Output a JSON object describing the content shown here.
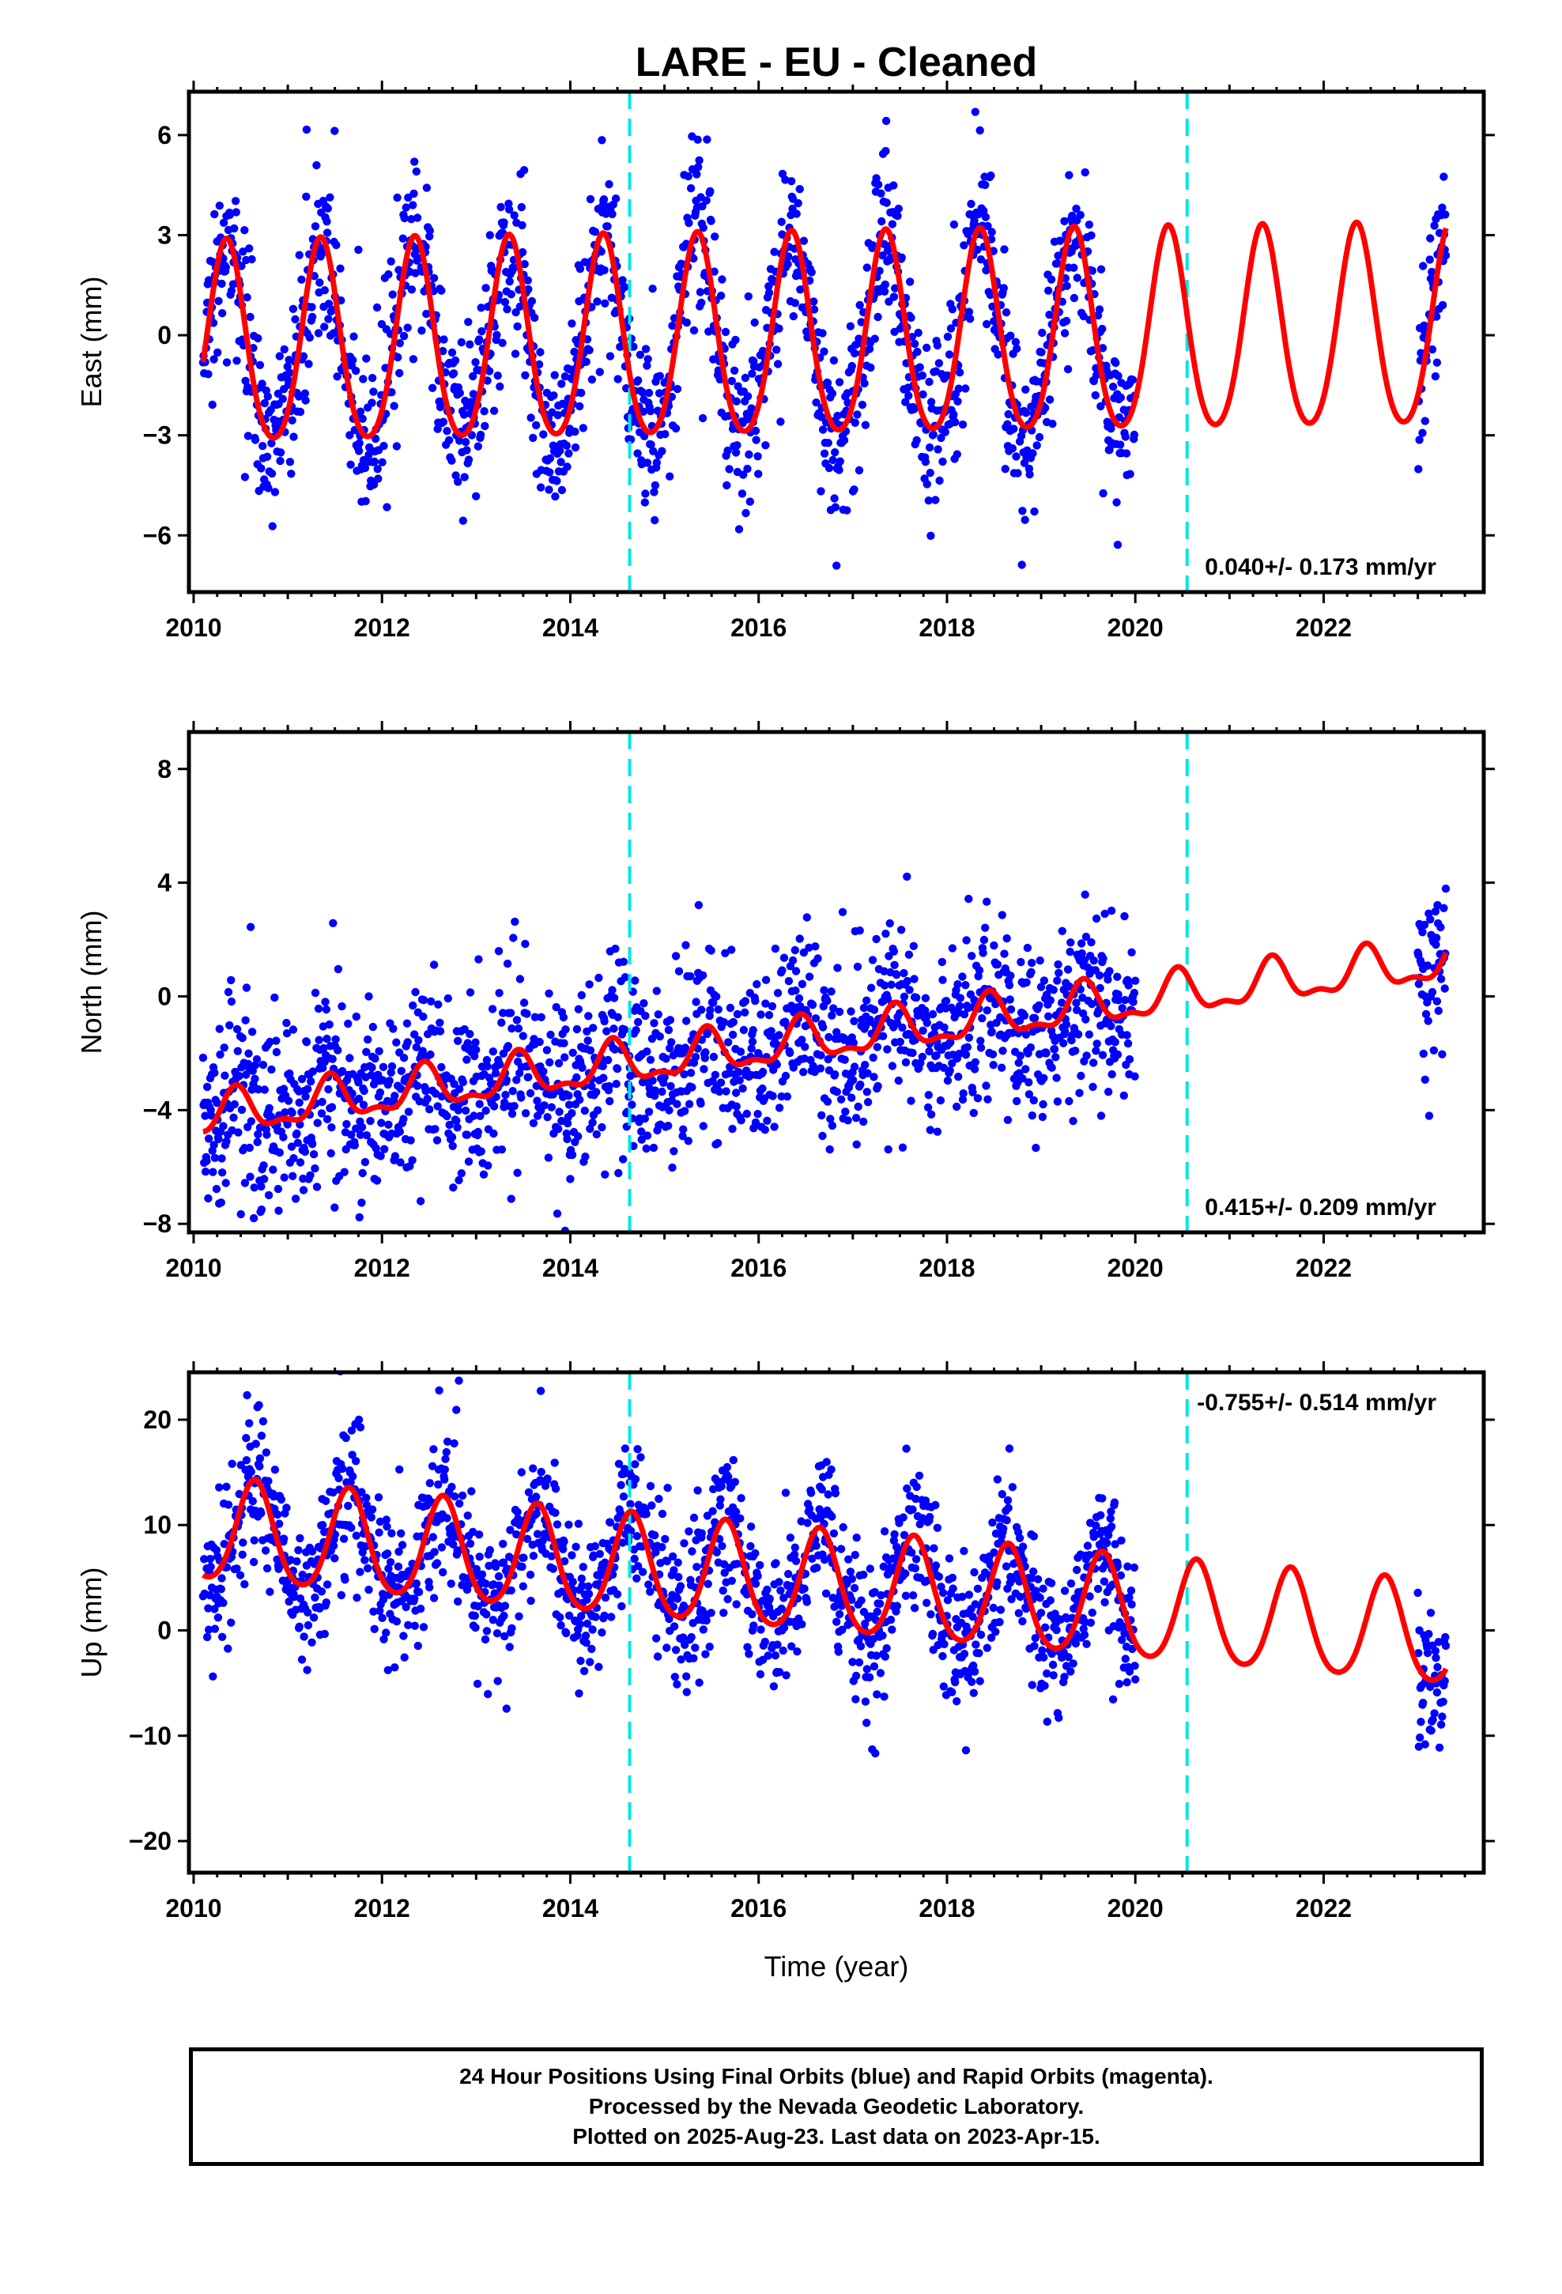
{
  "title": "LARE  - EU - Cleaned",
  "x_axis_label": "Time (year)",
  "footer": {
    "line1": "24 Hour Positions Using Final Orbits (blue) and Rapid Orbits (magenta).",
    "line2": "Processed by the Nevada Geodetic Laboratory.",
    "line3": "Plotted on 2025-Aug-23. Last data on 2023-Apr-15."
  },
  "colors": {
    "data": "#0000ff",
    "model": "#ff0000",
    "break_line": "#00e5e5"
  },
  "chart_data": [
    {
      "type": "scatter",
      "component": "East",
      "ylabel": "East (mm)",
      "xlim": [
        2009.95,
        2023.7
      ],
      "ylim": [
        -7.7,
        7.3
      ],
      "xticks": [
        2010,
        2012,
        2014,
        2016,
        2018,
        2020,
        2022
      ],
      "yticks": [
        -6,
        -3,
        0,
        3,
        6
      ],
      "ytick_labels": [
        "−6",
        "−3",
        "0",
        "3",
        "6"
      ],
      "rate_label": "0.040+/- 0.173 mm/yr",
      "breaks": [
        2014.63,
        2020.55
      ],
      "model": {
        "offset": -0.2,
        "trend": 0.04,
        "annual_amp": 3.0,
        "annual_phase_peak": 2010.35,
        "semiannual_amp": 0.35
      },
      "data_ranges": [
        [
          2010.1,
          2020.0
        ],
        [
          2023.0,
          2023.3
        ]
      ],
      "noise_sd": 1.3
    },
    {
      "type": "scatter",
      "component": "North",
      "ylabel": "North (mm)",
      "xlim": [
        2009.95,
        2023.7
      ],
      "ylim": [
        -8.3,
        9.3
      ],
      "xticks": [
        2010,
        2012,
        2014,
        2016,
        2018,
        2020,
        2022
      ],
      "yticks": [
        -8,
        -4,
        0,
        4,
        8
      ],
      "ytick_labels": [
        "−8",
        "−4",
        "0",
        "4",
        "8"
      ],
      "rate_label": "0.415+/- 0.209 mm/yr",
      "breaks": [
        2014.63,
        2020.55
      ],
      "model": {
        "offset": -1.6,
        "trend": 0.415,
        "annual_amp": 0.7,
        "annual_phase_peak": 2010.45,
        "semiannual_amp": 0.3
      },
      "data_ranges": [
        [
          2010.1,
          2020.0
        ],
        [
          2023.0,
          2023.3
        ]
      ],
      "noise_sd": 1.6
    },
    {
      "type": "scatter",
      "component": "Up",
      "ylabel": "Up (mm)",
      "xlim": [
        2009.95,
        2023.7
      ],
      "ylim": [
        -23,
        24.5
      ],
      "xticks": [
        2010,
        2012,
        2014,
        2016,
        2018,
        2020,
        2022
      ],
      "yticks": [
        -20,
        -10,
        0,
        10,
        20
      ],
      "ytick_labels": [
        "−20",
        "−10",
        "0",
        "10",
        "20"
      ],
      "rate_label": "-0.755+/- 0.514 mm/yr",
      "breaks": [
        2014.63,
        2020.55
      ],
      "model": {
        "offset": 4.5,
        "trend": -0.755,
        "annual_amp": 4.8,
        "annual_phase_peak": 2010.65,
        "semiannual_amp": 0.6
      },
      "data_ranges": [
        [
          2010.1,
          2020.0
        ],
        [
          2023.0,
          2023.3
        ]
      ],
      "noise_sd": 3.5
    }
  ]
}
